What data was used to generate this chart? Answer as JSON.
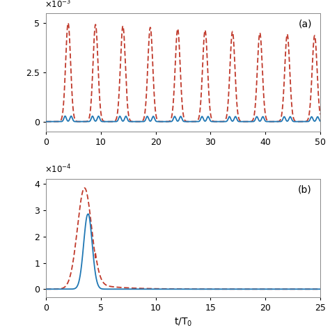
{
  "panel_a": {
    "xlim": [
      0,
      50
    ],
    "ylim_min": -0.0005,
    "ylim_max": 0.0055,
    "yticks": [
      0,
      0.0025,
      0.005
    ],
    "ytick_labels": [
      "0",
      "2.5",
      "5"
    ],
    "xticks": [
      0,
      10,
      20,
      30,
      40,
      50
    ],
    "label": "(a)"
  },
  "panel_b": {
    "xlim": [
      0,
      25
    ],
    "ylim_min": -3e-05,
    "ylim_max": 0.00042,
    "yticks": [
      0,
      0.0001,
      0.0002,
      0.0003,
      0.0004
    ],
    "ytick_labels": [
      "0",
      "1",
      "2",
      "3",
      "4"
    ],
    "xticks": [
      0,
      5,
      10,
      15,
      20,
      25
    ],
    "label": "(b)",
    "xlabel": "t/T$_0$"
  },
  "blue_color": "#1f77b4",
  "red_color": "#c0392b",
  "background_color": "#ffffff",
  "line_width": 1.3
}
